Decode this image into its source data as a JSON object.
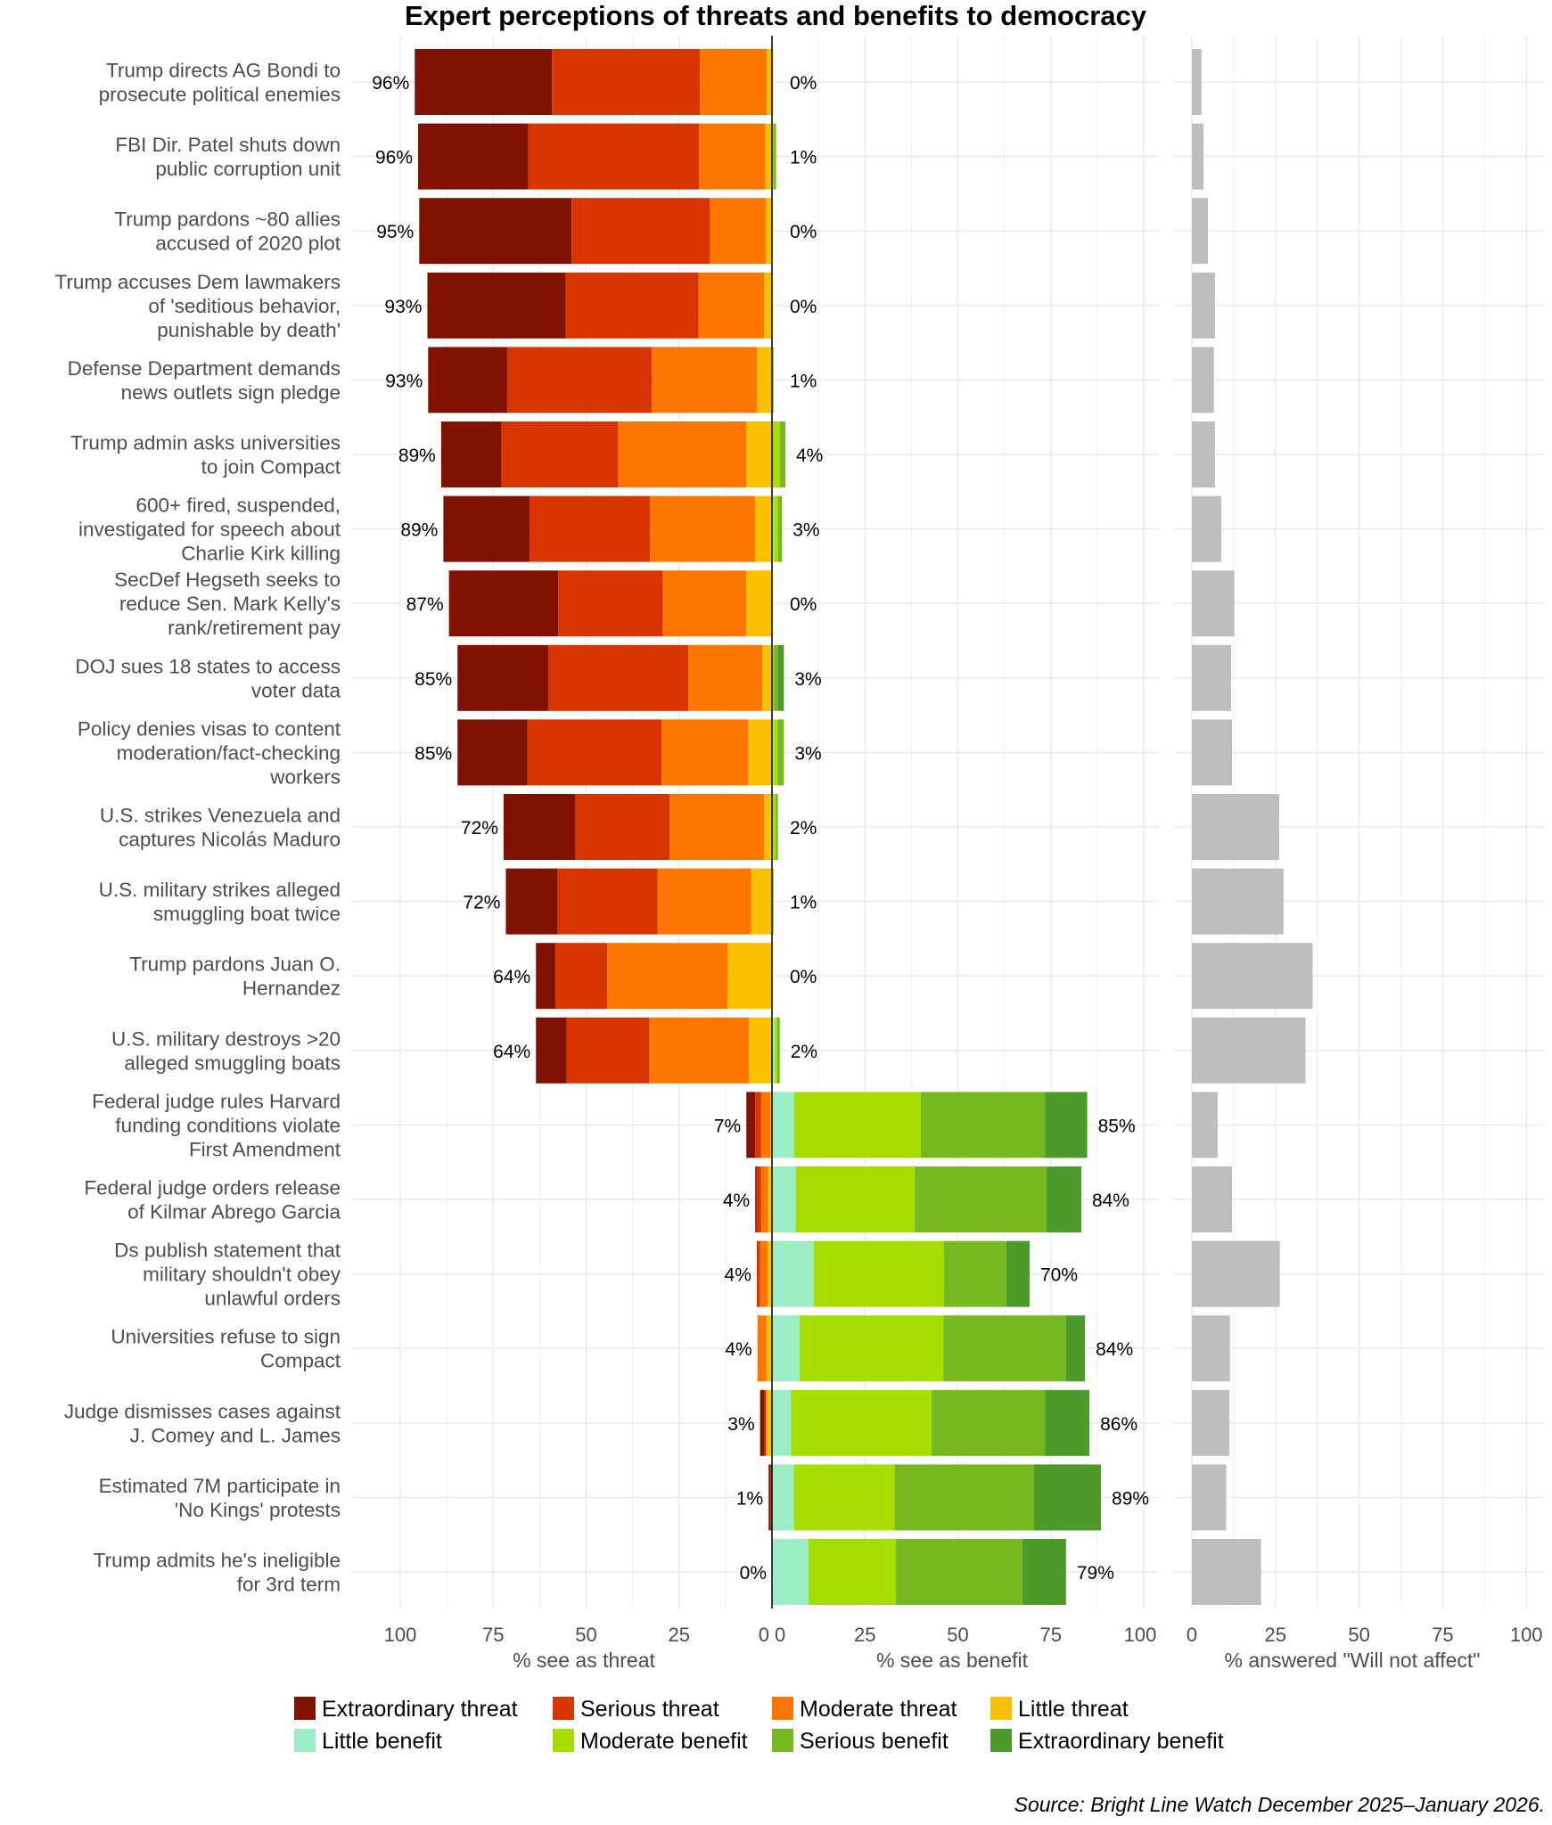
{
  "chart_data": {
    "type": "bar",
    "title": "Expert perceptions of threats and benefits to democracy",
    "source": "Source: Bright Line Watch December 2025–January 2026.",
    "axes": {
      "threat": {
        "title": "% see as threat",
        "ticks": [
          "100",
          "75",
          "50",
          "25",
          "0"
        ],
        "range": [
          100,
          0
        ]
      },
      "benefit": {
        "title": "% see as benefit",
        "ticks": [
          "0",
          "25",
          "50",
          "75",
          "100"
        ],
        "range": [
          0,
          100
        ]
      },
      "will_not_affect": {
        "title": "% answered \"Will not affect\"",
        "ticks": [
          "0",
          "25",
          "50",
          "75",
          "100"
        ],
        "range": [
          0,
          100
        ]
      }
    },
    "threat_categories": [
      "Extraordinary threat",
      "Serious threat",
      "Moderate threat",
      "Little threat"
    ],
    "benefit_categories": [
      "Little benefit",
      "Moderate benefit",
      "Serious benefit",
      "Extraordinary benefit"
    ],
    "legend": [
      {
        "label": "Extraordinary threat",
        "color": "#7f1200"
      },
      {
        "label": "Serious threat",
        "color": "#d83500"
      },
      {
        "label": "Moderate threat",
        "color": "#fd7600"
      },
      {
        "label": "Little threat",
        "color": "#f9c000"
      },
      {
        "label": "Little benefit",
        "color": "#9aedc5"
      },
      {
        "label": "Moderate benefit",
        "color": "#a5de00"
      },
      {
        "label": "Serious benefit",
        "color": "#76b81f"
      },
      {
        "label": "Extraordinary benefit",
        "color": "#4b9a2a"
      }
    ],
    "gray_color": "#bebebe",
    "rows": [
      {
        "label_lines": [
          "Trump directs AG Bondi to",
          "prosecute political enemies"
        ],
        "threat_label": "96%",
        "benefit_label": "0%",
        "threat": [
          36.9,
          39.8,
          18.0,
          1.4
        ],
        "benefit": [
          0,
          0.3,
          0,
          0
        ],
        "will_not_affect": 2.9
      },
      {
        "label_lines": [
          "FBI Dir. Patel shuts down",
          "public corruption unit"
        ],
        "threat_label": "96%",
        "benefit_label": "1%",
        "threat": [
          29.6,
          46.0,
          17.8,
          1.8
        ],
        "benefit": [
          0,
          0.5,
          0.6,
          0
        ],
        "will_not_affect": 3.5
      },
      {
        "label_lines": [
          "Trump pardons ~80 allies",
          "accused of 2020 plot"
        ],
        "threat_label": "95%",
        "benefit_label": "0%",
        "threat": [
          41.0,
          37.2,
          15.1,
          1.6
        ],
        "benefit": [
          0,
          0,
          0,
          0
        ],
        "will_not_affect": 4.8
      },
      {
        "label_lines": [
          "Trump accuses Dem lawmakers",
          "of 'seditious behavior,",
          "punishable by death'"
        ],
        "threat_label": "93%",
        "benefit_label": "0%",
        "threat": [
          37.2,
          35.7,
          17.7,
          2.1
        ],
        "benefit": [
          0,
          0,
          0,
          0
        ],
        "will_not_affect": 6.9
      },
      {
        "label_lines": [
          "Defense Department demands",
          "news outlets sign pledge"
        ],
        "threat_label": "93%",
        "benefit_label": "1%",
        "threat": [
          21.3,
          38.9,
          28.3,
          4.0
        ],
        "benefit": [
          0,
          0.5,
          0,
          0
        ],
        "will_not_affect": 6.6
      },
      {
        "label_lines": [
          "Trump admin asks universities",
          "to join Compact"
        ],
        "threat_label": "89%",
        "benefit_label": "4%",
        "threat": [
          16.2,
          31.4,
          34.5,
          6.9
        ],
        "benefit": [
          0,
          2.1,
          1.5,
          0
        ],
        "will_not_affect": 6.9
      },
      {
        "label_lines": [
          "600+ fired, suspended,",
          "investigated for speech about",
          "Charlie Kirk killing"
        ],
        "threat_label": "89%",
        "benefit_label": "3%",
        "threat": [
          23.2,
          32.4,
          28.3,
          4.5
        ],
        "benefit": [
          0.5,
          1.1,
          1.1,
          0
        ],
        "will_not_affect": 8.8
      },
      {
        "label_lines": [
          "SecDef Hegseth seeks to",
          "reduce Sen. Mark Kelly's",
          "rank/retirement pay"
        ],
        "threat_label": "87%",
        "benefit_label": "0%",
        "threat": [
          29.4,
          28.1,
          22.5,
          6.9
        ],
        "benefit": [
          0,
          0,
          0,
          0
        ],
        "will_not_affect": 12.7
      },
      {
        "label_lines": [
          "DOJ sues 18 states to access",
          "voter data"
        ],
        "threat_label": "85%",
        "benefit_label": "3%",
        "threat": [
          24.4,
          37.7,
          19.9,
          2.6
        ],
        "benefit": [
          0,
          0.5,
          1.1,
          1.6
        ],
        "will_not_affect": 11.7
      },
      {
        "label_lines": [
          "Policy denies visas to content",
          "moderation/fact-checking",
          "workers"
        ],
        "threat_label": "85%",
        "benefit_label": "3%",
        "threat": [
          18.8,
          36.1,
          23.3,
          6.4
        ],
        "benefit": [
          0.5,
          1.0,
          1.7,
          0
        ],
        "will_not_affect": 12.0
      },
      {
        "label_lines": [
          "U.S. strikes Venezuela and",
          "captures Nicolás Maduro"
        ],
        "threat_label": "72%",
        "benefit_label": "2%",
        "threat": [
          19.3,
          25.4,
          25.4,
          2.1
        ],
        "benefit": [
          0,
          1.0,
          0.6,
          0
        ],
        "will_not_affect": 26.1
      },
      {
        "label_lines": [
          "U.S. military strikes alleged",
          "smuggling boat twice"
        ],
        "threat_label": "72%",
        "benefit_label": "1%",
        "threat": [
          13.9,
          26.9,
          25.2,
          5.6
        ],
        "benefit": [
          0,
          0.5,
          0,
          0
        ],
        "will_not_affect": 27.4
      },
      {
        "label_lines": [
          "Trump pardons Juan O.",
          "Hernandez"
        ],
        "threat_label": "64%",
        "benefit_label": "0%",
        "threat": [
          5.3,
          13.9,
          32.4,
          11.9
        ],
        "benefit": [
          0,
          0,
          0,
          0
        ],
        "will_not_affect": 36.1
      },
      {
        "label_lines": [
          "U.S. military destroys >20",
          "alleged smuggling boats"
        ],
        "threat_label": "64%",
        "benefit_label": "2%",
        "threat": [
          8.3,
          22.2,
          26.8,
          6.2
        ],
        "benefit": [
          0.8,
          0.6,
          0.7,
          0
        ],
        "will_not_affect": 34.0
      },
      {
        "label_lines": [
          "Federal judge rules Harvard",
          "funding conditions violate",
          "First Amendment"
        ],
        "threat_label": "7%",
        "benefit_label": "85%",
        "threat": [
          2.4,
          1.6,
          2.5,
          0.4
        ],
        "benefit": [
          6.0,
          34.0,
          33.5,
          11.3
        ],
        "will_not_affect": 7.7
      },
      {
        "label_lines": [
          "Federal judge orders release",
          "of Kilmar Abrego Garcia"
        ],
        "threat_label": "4%",
        "benefit_label": "84%",
        "threat": [
          0.4,
          1.2,
          1.9,
          1.0
        ],
        "benefit": [
          6.4,
          32.0,
          35.4,
          9.4
        ],
        "will_not_affect": 12.0
      },
      {
        "label_lines": [
          "Ds publish statement that",
          "military shouldn't obey",
          "unlawful orders"
        ],
        "threat_label": "4%",
        "benefit_label": "70%",
        "threat": [
          0,
          0.9,
          2.0,
          1.2
        ],
        "benefit": [
          11.2,
          35.0,
          16.8,
          6.3
        ],
        "will_not_affect": 26.3
      },
      {
        "label_lines": [
          "Universities refuse to sign",
          "Compact"
        ],
        "threat_label": "4%",
        "benefit_label": "84%",
        "threat": [
          0,
          0,
          2.4,
          1.5
        ],
        "benefit": [
          7.4,
          38.7,
          33.0,
          5.1
        ],
        "will_not_affect": 11.4
      },
      {
        "label_lines": [
          "Judge dismisses cases against",
          "J. Comey and L. James"
        ],
        "threat_label": "3%",
        "benefit_label": "86%",
        "threat": [
          1.2,
          0.5,
          0,
          1.5
        ],
        "benefit": [
          5.1,
          37.8,
          30.6,
          11.9
        ],
        "will_not_affect": 11.2
      },
      {
        "label_lines": [
          "Estimated 7M participate in",
          "'No Kings' protests"
        ],
        "threat_label": "1%",
        "benefit_label": "89%",
        "threat": [
          0.5,
          0.4,
          0,
          0
        ],
        "benefit": [
          5.9,
          27.1,
          37.5,
          18.0
        ],
        "will_not_affect": 10.3
      },
      {
        "label_lines": [
          "Trump admits he's ineligible",
          "for 3rd term"
        ],
        "threat_label": "0%",
        "benefit_label": "79%",
        "threat": [
          0,
          0,
          0,
          0
        ],
        "benefit": [
          9.8,
          23.5,
          34.1,
          11.7
        ],
        "will_not_affect": 20.7
      }
    ]
  }
}
